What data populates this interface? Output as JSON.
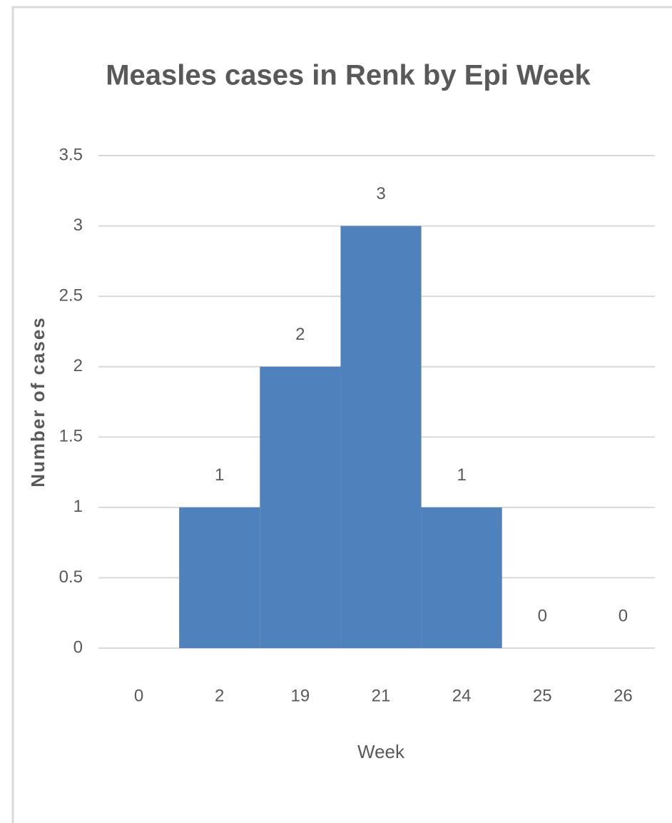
{
  "chart_data": {
    "type": "bar",
    "title": "Measles cases in Renk by Epi Week",
    "x_label": "Week",
    "y_label": "Number of cases",
    "categories": [
      "0",
      "2",
      "19",
      "21",
      "24",
      "25",
      "26"
    ],
    "values": [
      null,
      1,
      2,
      3,
      1,
      0,
      0
    ],
    "color": "#4f81bd",
    "ylim": [
      0,
      3.5
    ],
    "yticks": [
      0,
      0.5,
      1,
      1.5,
      2,
      2.5,
      3,
      3.5
    ],
    "grid": true,
    "data_labels": true
  }
}
